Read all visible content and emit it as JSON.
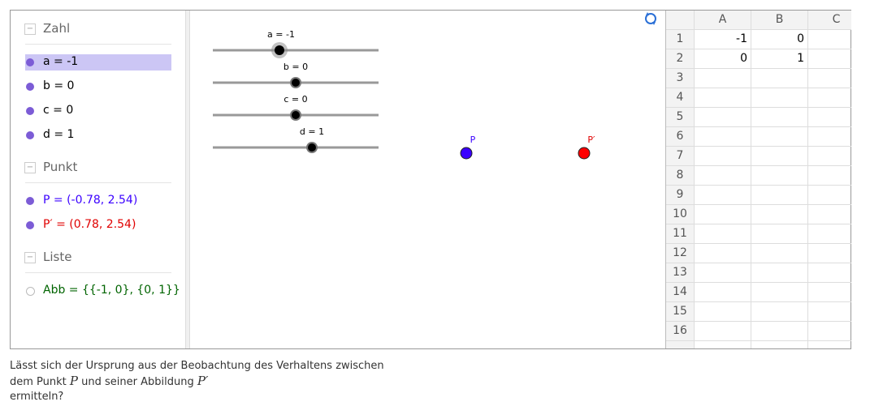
{
  "algebra": {
    "groups": [
      {
        "title": "Zahl",
        "items": [
          "a = -1",
          "b = 0",
          "c = 0",
          "d = 1"
        ]
      },
      {
        "title": "Punkt",
        "items": [
          "P = (-0.78, 2.54)",
          "P′ = (0.78, 2.54)"
        ]
      },
      {
        "title": "Liste",
        "items": [
          "Abb = {{-1, 0}, {0, 1}}"
        ]
      }
    ]
  },
  "graphics": {
    "sliders": [
      "a = -1",
      "b = 0",
      "c = 0",
      "d = 1"
    ],
    "points": [
      "P",
      "P′"
    ]
  },
  "spreadsheet": {
    "columns": [
      "A",
      "B",
      "C"
    ],
    "rows": [
      "1",
      "2",
      "3",
      "4",
      "5",
      "6",
      "7",
      "8",
      "9",
      "10",
      "11",
      "12",
      "13",
      "14",
      "15",
      "16"
    ],
    "cells": [
      [
        "-1",
        "0"
      ],
      [
        "0",
        "1"
      ]
    ]
  },
  "question": {
    "parts": [
      "Lässt sich der Ursprung aus der Beobachtung des Verhaltens zwischen",
      "dem Punkt",
      "P",
      "und seiner Abbildung",
      "P′",
      "ermitteln?"
    ]
  }
}
